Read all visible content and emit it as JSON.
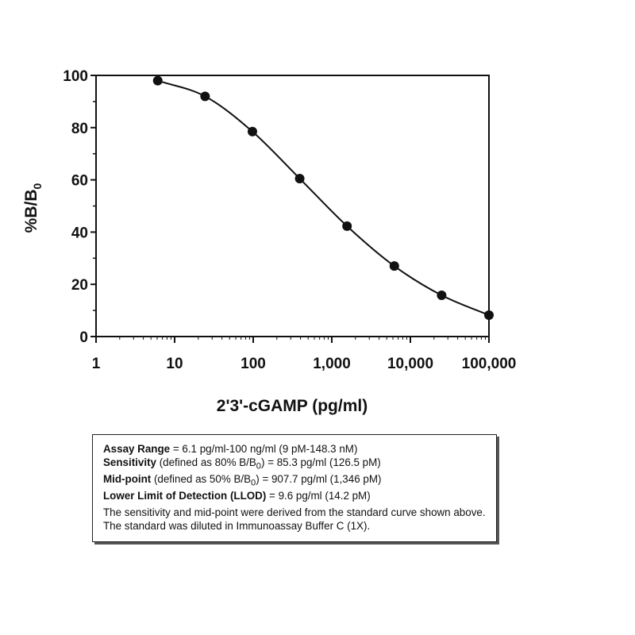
{
  "chart_data": {
    "type": "scatter",
    "title": "",
    "xlabel": "2'3'-cGAMP (pg/ml)",
    "ylabel": "%B/B",
    "ylabel_sub": "0",
    "x_scale": "log",
    "xlim": [
      1,
      100000
    ],
    "ylim": [
      0,
      100
    ],
    "x_ticks": [
      1,
      10,
      100,
      1000,
      10000,
      100000
    ],
    "x_tick_labels": [
      "1",
      "10",
      "100",
      "1,000",
      "10,000",
      "100,000"
    ],
    "y_ticks": [
      0,
      20,
      40,
      60,
      80,
      100
    ],
    "y_tick_labels": [
      "0",
      "20",
      "40",
      "60",
      "80",
      "100"
    ],
    "grid": false,
    "fit_curve": true,
    "series": [
      {
        "x": [
          6.1,
          24.4,
          97.7,
          390.6,
          1563,
          6250,
          25000,
          100000
        ],
        "y": [
          98,
          92,
          78.5,
          60.5,
          42.3,
          27,
          15.8,
          8.2
        ]
      }
    ]
  },
  "info": {
    "range_label": "Assay Range",
    "range_text": " = 6.1 pg/ml-100 ng/ml (9 pM-148.3 nM)",
    "sensitivity_label": "Sensitivity",
    "sensitivity_text_a": " (defined as 80% B/B",
    "sensitivity_sub": "0",
    "sensitivity_text_b": ") =  85.3 pg/ml (126.5 pM)",
    "midpoint_label": "Mid-point",
    "midpoint_text_a": " (defined as 50% B/B",
    "midpoint_sub": "0",
    "midpoint_text_b": ") =  907.7 pg/ml (1,346 pM)",
    "llod_label": "Lower Limit of Detection (LLOD)",
    "llod_text": " = 9.6 pg/ml (14.2 pM)",
    "note": "The sensitivity and mid-point were derived from the standard curve shown above. The standard was diluted in Immunoassay Buffer C (1X)."
  }
}
